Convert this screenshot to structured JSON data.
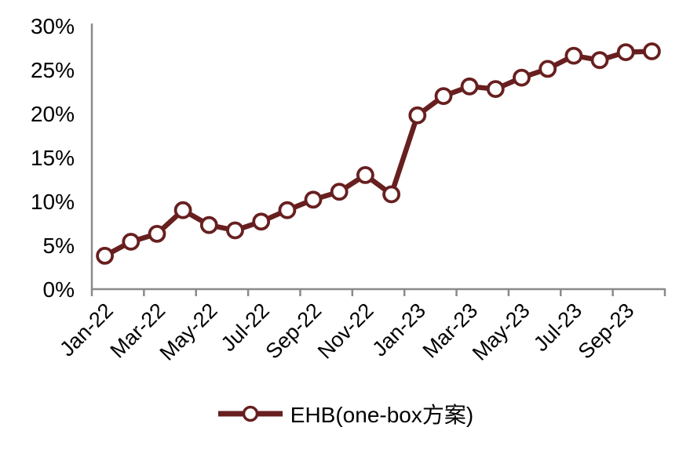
{
  "chart_data": {
    "type": "line",
    "title": "",
    "categories": [
      "Jan-22",
      "Feb-22",
      "Mar-22",
      "Apr-22",
      "May-22",
      "Jun-22",
      "Jul-22",
      "Aug-22",
      "Sep-22",
      "Oct-22",
      "Nov-22",
      "Dec-22",
      "Jan-23",
      "Feb-23",
      "Mar-23",
      "Apr-23",
      "May-23",
      "Jun-23",
      "Jul-23",
      "Aug-23",
      "Sep-23",
      "Oct-23"
    ],
    "series": [
      {
        "name": "EHB(one-box方案)",
        "color": "#681F1F",
        "marker": "open-circle",
        "values": [
          3.8,
          5.4,
          6.3,
          9.0,
          7.3,
          6.7,
          7.7,
          9.0,
          10.2,
          11.1,
          13.0,
          10.8,
          19.8,
          22.0,
          23.1,
          22.8,
          24.1,
          25.1,
          26.6,
          26.1,
          27.0,
          27.1
        ]
      }
    ],
    "x_axis": {
      "tick_labels": [
        "Jan-22",
        "Mar-22",
        "May-22",
        "Jul-22",
        "Sep-22",
        "Nov-22",
        "Jan-23",
        "Mar-23",
        "May-23",
        "Jul-23",
        "Sep-23"
      ],
      "label_rotation_deg": -45,
      "axis_color": "#8A8A8A"
    },
    "y_axis": {
      "min": 0,
      "max": 30,
      "step": 5,
      "tick_labels": [
        "0%",
        "5%",
        "10%",
        "15%",
        "20%",
        "25%",
        "30%"
      ],
      "unit": "%"
    },
    "grid": false,
    "legend": {
      "position": "bottom",
      "entries": [
        "EHB(one-box方案)"
      ]
    },
    "colors": {
      "series": "#681F1F",
      "axis": "#8A8A8A",
      "text": "#000000",
      "background": "#FFFFFF"
    }
  }
}
